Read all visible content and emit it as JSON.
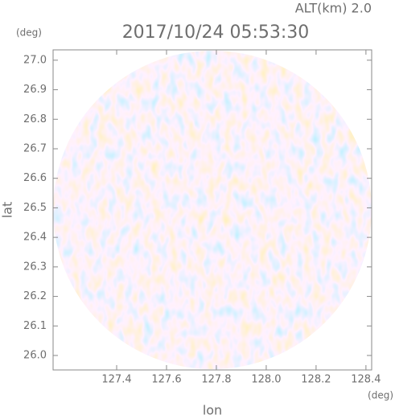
{
  "chart_data": {
    "type": "radar-ppi",
    "title": "2017/10/24 05:53:30",
    "subtitle": "ALT(km) 2.0",
    "x_label": "lon",
    "y_label": "lat",
    "x_unit": "(deg)",
    "y_unit": "(deg)",
    "xlim": [
      127.145,
      128.423
    ],
    "ylim": [
      25.951,
      27.035
    ],
    "xticks": [
      127.4,
      127.6,
      127.8,
      {
        "value": 128,
        "label": "128.0"
      },
      128.2,
      128.4
    ],
    "yticks": [
      {
        "value": 26,
        "label": "26.0"
      },
      26.1,
      26.2,
      26.3,
      26.4,
      26.5,
      26.6,
      26.7,
      26.8,
      26.9,
      {
        "value": 27,
        "label": "27.0"
      }
    ]
  }
}
